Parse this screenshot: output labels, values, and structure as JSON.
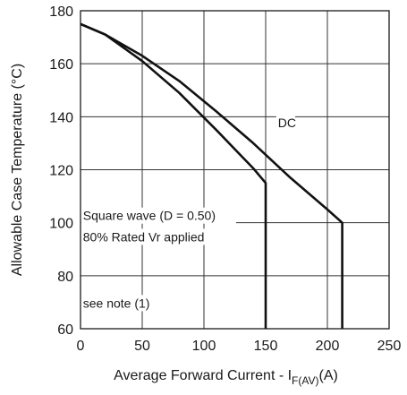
{
  "chart_data": {
    "type": "line",
    "xlabel": "Average Forward Current - I",
    "xlabel_sub": "F(AV)",
    "xlabel_unit": "(A)",
    "ylabel": "Allowable Case Temperature (°C)",
    "xlim": [
      0,
      250
    ],
    "ylim": [
      60,
      180
    ],
    "xticks": [
      0,
      50,
      100,
      150,
      200,
      250
    ],
    "yticks": [
      60,
      80,
      100,
      120,
      140,
      160,
      180
    ],
    "grid": true,
    "series": [
      {
        "name": "DC",
        "points": [
          [
            0,
            175
          ],
          [
            20,
            171
          ],
          [
            50,
            163
          ],
          [
            80,
            153.5
          ],
          [
            110,
            142
          ],
          [
            140,
            130
          ],
          [
            170,
            117
          ],
          [
            200,
            105
          ],
          [
            212,
            100
          ],
          [
            212,
            60
          ]
        ]
      },
      {
        "name": "",
        "points": [
          [
            0,
            175
          ],
          [
            20,
            171
          ],
          [
            50,
            161
          ],
          [
            80,
            149
          ],
          [
            110,
            135
          ],
          [
            140,
            120.5
          ],
          [
            150,
            115
          ],
          [
            150,
            60
          ]
        ]
      }
    ],
    "annotations": [
      {
        "text": "DC",
        "x": 160,
        "y": 136
      },
      {
        "text": "Square wave (D = 0.50)",
        "x": 2,
        "y": 101
      },
      {
        "text": "80% Rated Vr applied",
        "x": 2,
        "y": 93
      },
      {
        "text": "see note (1)",
        "x": 2,
        "y": 68
      }
    ]
  }
}
